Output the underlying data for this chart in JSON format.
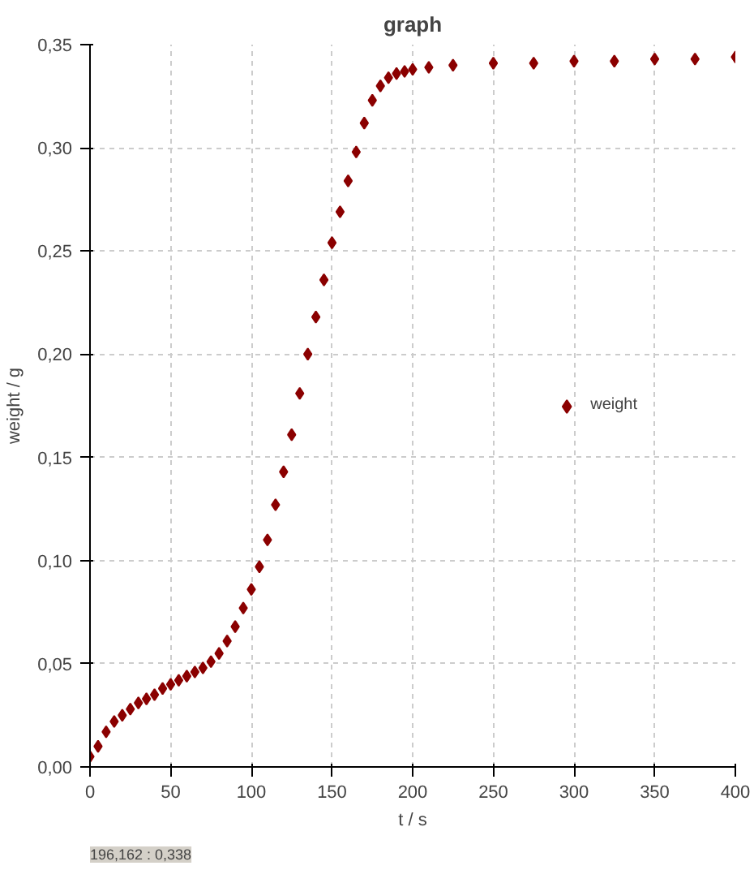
{
  "chart_data": {
    "type": "scatter",
    "title": "graph",
    "xlabel": "t / s",
    "ylabel": "weight / g",
    "x": [
      0,
      5,
      10,
      15,
      20,
      25,
      30,
      35,
      40,
      45,
      50,
      55,
      60,
      65,
      70,
      75,
      80,
      85,
      90,
      95,
      100,
      105,
      110,
      115,
      120,
      125,
      130,
      135,
      140,
      145,
      150,
      155,
      160,
      165,
      170,
      175,
      180,
      185,
      190,
      195,
      200,
      210,
      225,
      250,
      275,
      300,
      325,
      350,
      375,
      400
    ],
    "series": [
      {
        "name": "weight",
        "color": "#8b0000",
        "values": [
          0.005,
          0.01,
          0.017,
          0.022,
          0.025,
          0.028,
          0.031,
          0.033,
          0.035,
          0.038,
          0.04,
          0.042,
          0.044,
          0.046,
          0.048,
          0.051,
          0.055,
          0.061,
          0.068,
          0.077,
          0.086,
          0.097,
          0.11,
          0.127,
          0.143,
          0.161,
          0.181,
          0.2,
          0.218,
          0.236,
          0.254,
          0.269,
          0.284,
          0.298,
          0.312,
          0.323,
          0.33,
          0.334,
          0.336,
          0.337,
          0.338,
          0.339,
          0.34,
          0.341,
          0.341,
          0.342,
          0.342,
          0.343,
          0.343,
          0.344
        ]
      }
    ],
    "xlim": [
      0,
      400
    ],
    "xticks": [
      0,
      50,
      100,
      150,
      200,
      250,
      300,
      350,
      400
    ],
    "ylim": [
      0,
      0.35
    ],
    "yticks": [
      {
        "value": 0,
        "label": "0,00"
      },
      {
        "value": 0.05,
        "label": "0,05"
      },
      {
        "value": 0.1,
        "label": "0,10"
      },
      {
        "value": 0.15,
        "label": "0,15"
      },
      {
        "value": 0.2,
        "label": "0,20"
      },
      {
        "value": 0.25,
        "label": "0,25"
      },
      {
        "value": 0.3,
        "label": "0,30"
      },
      {
        "value": 0.35,
        "label": "0,35"
      }
    ],
    "grid": true,
    "legend": "right",
    "marker": "diamond",
    "annotations": [
      "196,162 : 0,338"
    ]
  }
}
